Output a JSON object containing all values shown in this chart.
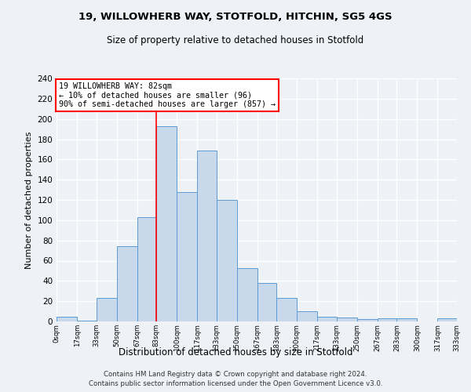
{
  "title1": "19, WILLOWHERB WAY, STOTFOLD, HITCHIN, SG5 4GS",
  "title2": "Size of property relative to detached houses in Stotfold",
  "xlabel": "Distribution of detached houses by size in Stotfold",
  "ylabel": "Number of detached properties",
  "bin_labels": [
    "0sqm",
    "17sqm",
    "33sqm",
    "50sqm",
    "67sqm",
    "83sqm",
    "100sqm",
    "117sqm",
    "133sqm",
    "150sqm",
    "167sqm",
    "183sqm",
    "200sqm",
    "217sqm",
    "233sqm",
    "250sqm",
    "267sqm",
    "283sqm",
    "300sqm",
    "317sqm",
    "333sqm"
  ],
  "bar_values": [
    5,
    1,
    23,
    74,
    103,
    193,
    128,
    169,
    120,
    53,
    38,
    23,
    10,
    5,
    4,
    2,
    3,
    3,
    0,
    3
  ],
  "bar_color": "#c9d9ec",
  "bar_edge_color": "#5b9bd5",
  "bin_edges": [
    0,
    17,
    33,
    50,
    67,
    83,
    100,
    117,
    133,
    150,
    167,
    183,
    200,
    217,
    233,
    250,
    267,
    283,
    300,
    317,
    333
  ],
  "vline_x": 83,
  "annotation_text": "19 WILLOWHERB WAY: 82sqm\n← 10% of detached houses are smaller (96)\n90% of semi-detached houses are larger (857) →",
  "annotation_box_color": "white",
  "annotation_box_edge_color": "red",
  "vline_color": "red",
  "footer1": "Contains HM Land Registry data © Crown copyright and database right 2024.",
  "footer2": "Contains public sector information licensed under the Open Government Licence v3.0.",
  "ylim": [
    0,
    240
  ],
  "yticks": [
    0,
    20,
    40,
    60,
    80,
    100,
    120,
    140,
    160,
    180,
    200,
    220,
    240
  ],
  "background_color": "#eef2f7",
  "grid_color": "white"
}
